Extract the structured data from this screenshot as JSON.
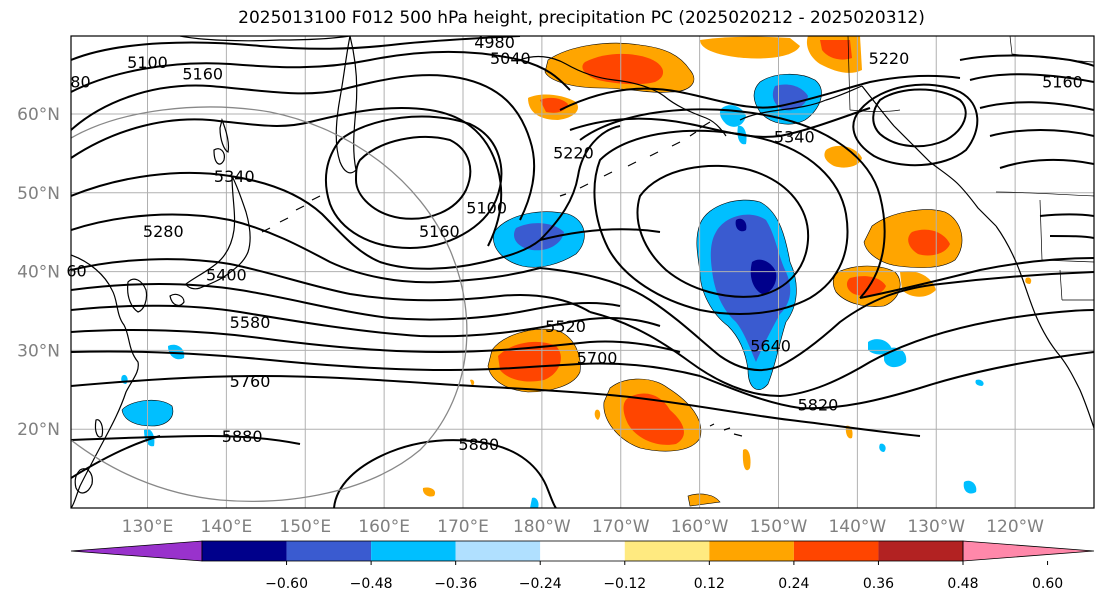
{
  "title": "2025013100 F012 500 hPa height, precipitation PC (2025020212 - 2025020312)",
  "lat_labels": [
    {
      "text": "60°N",
      "lat": 60
    },
    {
      "text": "50°N",
      "lat": 50
    },
    {
      "text": "40°N",
      "lat": 40
    },
    {
      "text": "30°N",
      "lat": 30
    },
    {
      "text": "20°N",
      "lat": 20
    }
  ],
  "lon_labels": [
    {
      "text": "130°E",
      "lon": 130
    },
    {
      "text": "140°E",
      "lon": 140
    },
    {
      "text": "150°E",
      "lon": 150
    },
    {
      "text": "160°E",
      "lon": 160
    },
    {
      "text": "170°E",
      "lon": 170
    },
    {
      "text": "180°W",
      "lon": 180
    },
    {
      "text": "170°W",
      "lon": 190
    },
    {
      "text": "160°W",
      "lon": 200
    },
    {
      "text": "150°W",
      "lon": 210
    },
    {
      "text": "140°W",
      "lon": 220
    },
    {
      "text": "130°W",
      "lon": 230
    },
    {
      "text": "120°W",
      "lon": 240
    }
  ],
  "contour_labels": [
    {
      "text": "5100",
      "lon": 130,
      "lat": 66.5
    },
    {
      "text": "4980",
      "lon": 174,
      "lat": 69
    },
    {
      "text": "5040",
      "lon": 176,
      "lat": 67
    },
    {
      "text": "5160",
      "lon": 137,
      "lat": 65
    },
    {
      "text": "80",
      "lon": 121.5,
      "lat": 64
    },
    {
      "text": "5220",
      "lon": 224,
      "lat": 67
    },
    {
      "text": "5160",
      "lon": 246,
      "lat": 64
    },
    {
      "text": "5340",
      "lon": 141,
      "lat": 52
    },
    {
      "text": "5280",
      "lon": 132,
      "lat": 45
    },
    {
      "text": "5220",
      "lon": 184,
      "lat": 55
    },
    {
      "text": "5100",
      "lon": 173,
      "lat": 48
    },
    {
      "text": "5160",
      "lon": 167,
      "lat": 45
    },
    {
      "text": "5340",
      "lon": 212,
      "lat": 57
    },
    {
      "text": "60",
      "lon": 121,
      "lat": 40
    },
    {
      "text": "5400",
      "lon": 140,
      "lat": 39.5
    },
    {
      "text": "5580",
      "lon": 143,
      "lat": 33.5
    },
    {
      "text": "5520",
      "lon": 183,
      "lat": 33
    },
    {
      "text": "5700",
      "lon": 187,
      "lat": 29
    },
    {
      "text": "5640",
      "lon": 209,
      "lat": 30.5
    },
    {
      "text": "5760",
      "lon": 143,
      "lat": 26
    },
    {
      "text": "5820",
      "lon": 215,
      "lat": 23
    },
    {
      "text": "5880",
      "lon": 142,
      "lat": 19
    },
    {
      "text": "5880",
      "lon": 172,
      "lat": 18
    }
  ],
  "colorbar": {
    "colors": [
      "#9932cc",
      "#00008b",
      "#3a5bd0",
      "#00bfff",
      "#b0e0ff",
      "#ffffff",
      "#ffea80",
      "#ffa500",
      "#ff4500",
      "#b22222",
      "#ff88aa"
    ],
    "ticks": [
      "−0.60",
      "−0.48",
      "−0.36",
      "−0.24",
      "−0.12",
      "0.12",
      "0.24",
      "0.36",
      "0.48",
      "0.60"
    ]
  }
}
